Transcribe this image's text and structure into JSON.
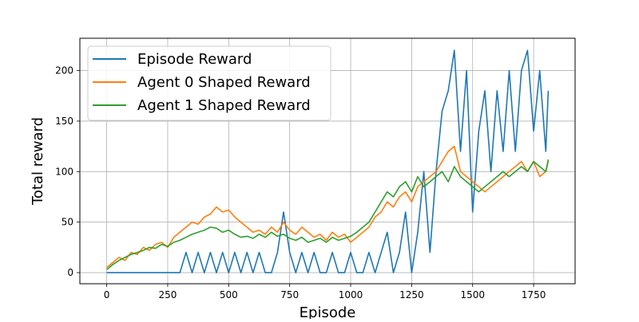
{
  "chart_data": {
    "type": "line",
    "title": "",
    "xlabel": "Episode",
    "ylabel": "Total reward",
    "xlim": [
      -110,
      1920
    ],
    "ylim": [
      -11,
      232
    ],
    "xticks": [
      0,
      250,
      500,
      750,
      1000,
      1250,
      1500,
      1750
    ],
    "yticks": [
      0,
      50,
      100,
      150,
      200
    ],
    "grid": true,
    "legend_position": "top-left",
    "series": [
      {
        "name": "Episode Reward",
        "color": "#1f77b4",
        "x": [
          0,
          25,
          50,
          75,
          100,
          125,
          150,
          175,
          200,
          225,
          250,
          275,
          300,
          325,
          350,
          375,
          400,
          425,
          450,
          475,
          500,
          525,
          550,
          575,
          600,
          625,
          650,
          675,
          700,
          725,
          750,
          775,
          800,
          825,
          850,
          875,
          900,
          925,
          950,
          975,
          1000,
          1025,
          1050,
          1075,
          1100,
          1125,
          1150,
          1175,
          1200,
          1225,
          1250,
          1275,
          1300,
          1325,
          1350,
          1375,
          1400,
          1425,
          1450,
          1475,
          1500,
          1525,
          1550,
          1575,
          1600,
          1625,
          1650,
          1675,
          1700,
          1725,
          1750,
          1775,
          1800,
          1810
        ],
        "values": [
          0,
          0,
          0,
          0,
          0,
          0,
          0,
          0,
          0,
          0,
          0,
          0,
          0,
          20,
          0,
          20,
          0,
          20,
          0,
          20,
          0,
          20,
          0,
          20,
          0,
          20,
          0,
          0,
          20,
          60,
          20,
          0,
          20,
          0,
          20,
          0,
          0,
          20,
          0,
          0,
          20,
          0,
          0,
          20,
          0,
          20,
          40,
          0,
          20,
          60,
          0,
          40,
          100,
          20,
          100,
          160,
          180,
          220,
          120,
          200,
          60,
          140,
          180,
          100,
          180,
          120,
          200,
          120,
          200,
          220,
          140,
          200,
          120,
          180
        ]
      },
      {
        "name": "Agent 0 Shaped Reward",
        "color": "#ff7f0e",
        "x": [
          0,
          25,
          50,
          75,
          100,
          125,
          150,
          175,
          200,
          225,
          250,
          275,
          300,
          325,
          350,
          375,
          400,
          425,
          450,
          475,
          500,
          525,
          550,
          575,
          600,
          625,
          650,
          675,
          700,
          725,
          750,
          775,
          800,
          825,
          850,
          875,
          900,
          925,
          950,
          975,
          1000,
          1025,
          1050,
          1075,
          1100,
          1125,
          1150,
          1175,
          1200,
          1225,
          1250,
          1275,
          1300,
          1325,
          1350,
          1375,
          1400,
          1425,
          1450,
          1475,
          1500,
          1525,
          1550,
          1575,
          1600,
          1625,
          1650,
          1675,
          1700,
          1725,
          1750,
          1775,
          1800,
          1810
        ],
        "values": [
          5,
          10,
          15,
          12,
          20,
          18,
          25,
          22,
          28,
          30,
          25,
          35,
          40,
          45,
          50,
          48,
          55,
          58,
          65,
          60,
          62,
          55,
          50,
          45,
          40,
          42,
          38,
          45,
          40,
          50,
          42,
          38,
          45,
          40,
          35,
          38,
          32,
          40,
          35,
          38,
          30,
          35,
          40,
          45,
          55,
          60,
          70,
          65,
          75,
          80,
          70,
          85,
          90,
          95,
          100,
          110,
          120,
          125,
          100,
          95,
          90,
          85,
          80,
          85,
          90,
          95,
          100,
          105,
          110,
          100,
          110,
          95,
          100,
          110
        ]
      },
      {
        "name": "Agent 1 Shaped Reward",
        "color": "#2ca02c",
        "x": [
          0,
          25,
          50,
          75,
          100,
          125,
          150,
          175,
          200,
          225,
          250,
          275,
          300,
          325,
          350,
          375,
          400,
          425,
          450,
          475,
          500,
          525,
          550,
          575,
          600,
          625,
          650,
          675,
          700,
          725,
          750,
          775,
          800,
          825,
          850,
          875,
          900,
          925,
          950,
          975,
          1000,
          1025,
          1050,
          1075,
          1100,
          1125,
          1150,
          1175,
          1200,
          1225,
          1250,
          1275,
          1300,
          1325,
          1350,
          1375,
          1400,
          1425,
          1450,
          1475,
          1500,
          1525,
          1550,
          1575,
          1600,
          1625,
          1650,
          1675,
          1700,
          1725,
          1750,
          1775,
          1800,
          1810
        ],
        "values": [
          3,
          8,
          12,
          15,
          18,
          20,
          22,
          25,
          24,
          28,
          26,
          30,
          32,
          35,
          38,
          40,
          42,
          45,
          44,
          40,
          42,
          38,
          35,
          36,
          34,
          38,
          35,
          40,
          36,
          38,
          34,
          32,
          35,
          30,
          32,
          34,
          30,
          35,
          32,
          34,
          36,
          40,
          45,
          50,
          60,
          70,
          80,
          75,
          85,
          90,
          80,
          95,
          85,
          90,
          95,
          100,
          90,
          105,
          95,
          90,
          85,
          80,
          85,
          90,
          95,
          100,
          95,
          100,
          105,
          100,
          110,
          105,
          100,
          112
        ]
      }
    ]
  }
}
